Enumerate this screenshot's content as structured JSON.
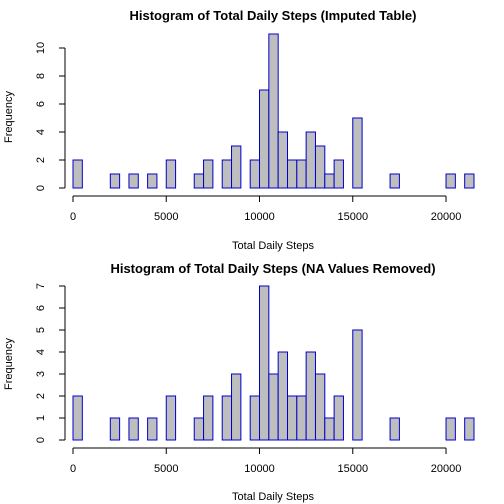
{
  "chart_data": [
    {
      "type": "bar",
      "title": "Histogram of Total Daily Steps (Imputed Table)",
      "xlabel": "Total  Daily Steps",
      "ylabel": "Frequency",
      "bin_width": 500,
      "xlim": [
        0,
        21500
      ],
      "ylim": [
        0,
        11
      ],
      "x_ticks": [
        0,
        5000,
        10000,
        15000,
        20000
      ],
      "y_ticks": [
        0,
        2,
        4,
        6,
        8,
        10
      ],
      "bins": [
        {
          "x0": 0,
          "count": 2
        },
        {
          "x0": 2000,
          "count": 1
        },
        {
          "x0": 3000,
          "count": 1
        },
        {
          "x0": 4000,
          "count": 1
        },
        {
          "x0": 5000,
          "count": 2
        },
        {
          "x0": 6500,
          "count": 1
        },
        {
          "x0": 7000,
          "count": 2
        },
        {
          "x0": 8000,
          "count": 2
        },
        {
          "x0": 8500,
          "count": 3
        },
        {
          "x0": 9500,
          "count": 2
        },
        {
          "x0": 10000,
          "count": 7
        },
        {
          "x0": 10500,
          "count": 11
        },
        {
          "x0": 11000,
          "count": 4
        },
        {
          "x0": 11500,
          "count": 2
        },
        {
          "x0": 12000,
          "count": 2
        },
        {
          "x0": 12500,
          "count": 4
        },
        {
          "x0": 13000,
          "count": 3
        },
        {
          "x0": 13500,
          "count": 1
        },
        {
          "x0": 14000,
          "count": 2
        },
        {
          "x0": 15000,
          "count": 5
        },
        {
          "x0": 17000,
          "count": 1
        },
        {
          "x0": 20000,
          "count": 1
        },
        {
          "x0": 21000,
          "count": 1
        }
      ]
    },
    {
      "type": "bar",
      "title": "Histogram of Total Daily Steps (NA Values Removed)",
      "xlabel": "Total Daily Steps",
      "ylabel": "Frequency",
      "bin_width": 500,
      "xlim": [
        0,
        21500
      ],
      "ylim": [
        0,
        7
      ],
      "x_ticks": [
        0,
        5000,
        10000,
        15000,
        20000
      ],
      "y_ticks": [
        0,
        1,
        2,
        3,
        4,
        5,
        6,
        7
      ],
      "bins": [
        {
          "x0": 0,
          "count": 2
        },
        {
          "x0": 2000,
          "count": 1
        },
        {
          "x0": 3000,
          "count": 1
        },
        {
          "x0": 4000,
          "count": 1
        },
        {
          "x0": 5000,
          "count": 2
        },
        {
          "x0": 6500,
          "count": 1
        },
        {
          "x0": 7000,
          "count": 2
        },
        {
          "x0": 8000,
          "count": 2
        },
        {
          "x0": 8500,
          "count": 3
        },
        {
          "x0": 9500,
          "count": 2
        },
        {
          "x0": 10000,
          "count": 7
        },
        {
          "x0": 10500,
          "count": 3
        },
        {
          "x0": 11000,
          "count": 4
        },
        {
          "x0": 11500,
          "count": 2
        },
        {
          "x0": 12000,
          "count": 2
        },
        {
          "x0": 12500,
          "count": 4
        },
        {
          "x0": 13000,
          "count": 3
        },
        {
          "x0": 13500,
          "count": 1
        },
        {
          "x0": 14000,
          "count": 2
        },
        {
          "x0": 15000,
          "count": 5
        },
        {
          "x0": 17000,
          "count": 1
        },
        {
          "x0": 20000,
          "count": 1
        },
        {
          "x0": 21000,
          "count": 1
        }
      ]
    }
  ]
}
